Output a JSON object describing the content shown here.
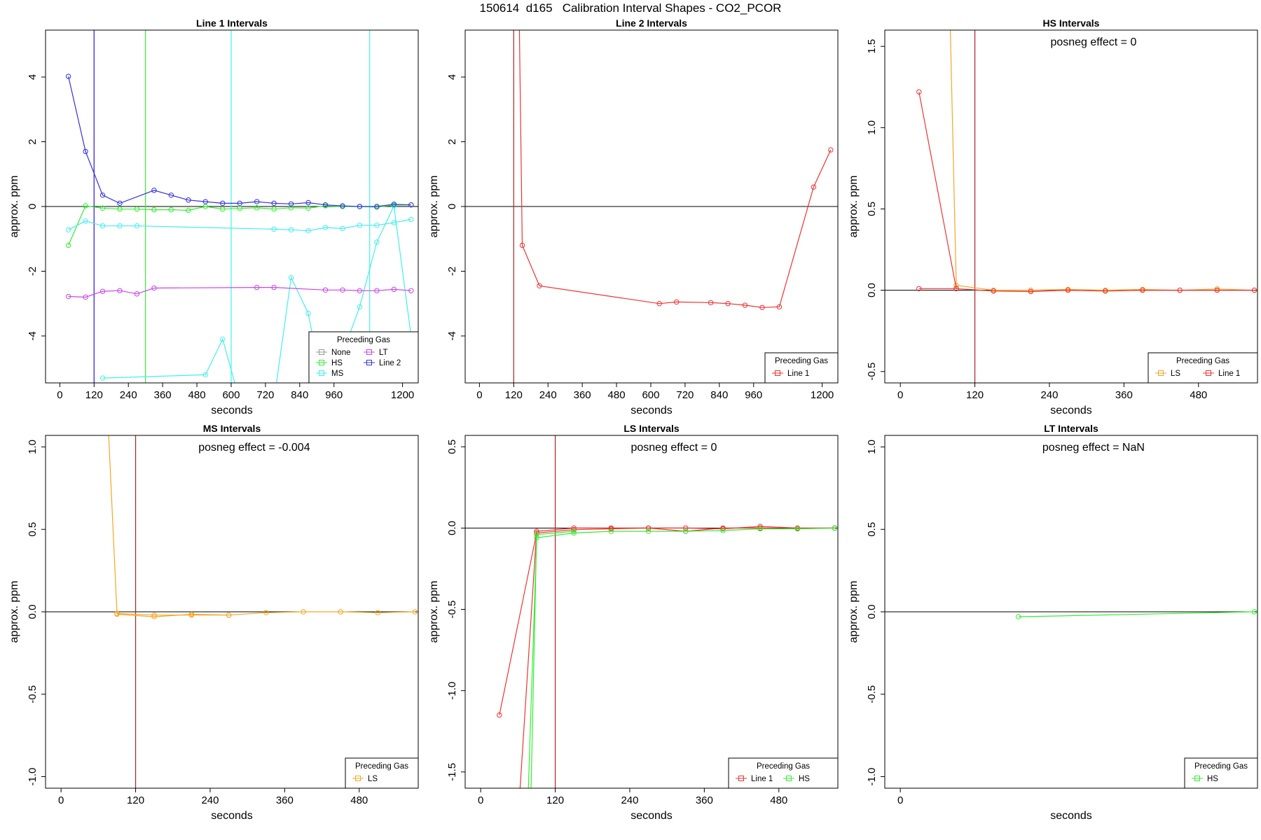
{
  "main_title": "150614  d165   Calibration Interval Shapes - CO2_PCOR",
  "legend_title": "Preceding Gas",
  "colors": {
    "None": "#999999",
    "HS": "#33ee33",
    "MS": "#44eeee",
    "LT": "#cc44ee",
    "Line 2": "#3333dd",
    "Line 1": "#ee3333",
    "LS": "#f5a623",
    "ref_red": "#aa2222"
  },
  "chart_data": [
    {
      "type": "line",
      "title": "Line 1 Intervals",
      "xlabel": "seconds",
      "ylabel": "approx. ppm",
      "xlim": [
        -50,
        1255
      ],
      "ylim": [
        -5.45,
        5.45
      ],
      "xticks": [
        0,
        120,
        240,
        360,
        480,
        600,
        720,
        840,
        960,
        1200
      ],
      "yticks": [
        -4,
        -2,
        0,
        2,
        4
      ],
      "vlines": [
        {
          "x": 120,
          "color": "#cc44ee"
        },
        {
          "x": 120,
          "color": "#3333dd"
        },
        {
          "x": 300,
          "color": "#33ee33"
        },
        {
          "x": 600,
          "color": "#44eeee"
        },
        {
          "x": 1085,
          "color": "#44eeee"
        }
      ],
      "posneg": "",
      "legend": {
        "entries": [
          "None",
          "HS",
          "MS",
          "LT",
          "Line 2"
        ],
        "cols": 2
      },
      "series": [
        {
          "name": "HS",
          "color": "#33ee33",
          "x": [
            30,
            90,
            150,
            210,
            270,
            330,
            390,
            450,
            510,
            570,
            630,
            690,
            750,
            810,
            870,
            930,
            990,
            1050,
            1110,
            1170,
            1230
          ],
          "y": [
            -1.2,
            0.02,
            -0.05,
            -0.08,
            -0.08,
            -0.1,
            -0.1,
            -0.12,
            0.0,
            -0.08,
            -0.06,
            -0.04,
            -0.08,
            -0.04,
            -0.05,
            0.02,
            0.0,
            0.0,
            -0.02,
            0.04,
            0.05
          ]
        },
        {
          "name": "MS",
          "color": "#44eeee",
          "x": [
            30,
            90,
            150,
            210,
            270,
            750,
            810,
            870,
            930,
            990,
            1050,
            1110,
            1170,
            1230
          ],
          "y": [
            -0.72,
            -0.45,
            -0.6,
            -0.6,
            -0.6,
            -0.7,
            -0.72,
            -0.75,
            -0.65,
            -0.68,
            -0.58,
            -0.58,
            -0.5,
            -0.4
          ]
        },
        {
          "name": "MS",
          "color": "#44eeee",
          "x": [
            150,
            510,
            570,
            630,
            750,
            810,
            870,
            930,
            1050,
            1110,
            1170,
            1230
          ],
          "y": [
            -5.3,
            -5.2,
            -4.1,
            -6.0,
            -6.0,
            -2.2,
            -3.3,
            -6.0,
            -3.1,
            -1.1,
            0.02,
            -4.0
          ]
        },
        {
          "name": "LT",
          "color": "#cc44ee",
          "x": [
            30,
            90,
            150,
            210,
            270,
            330,
            690,
            750,
            930,
            990,
            1050,
            1110,
            1170,
            1230
          ],
          "y": [
            -2.78,
            -2.8,
            -2.62,
            -2.6,
            -2.7,
            -2.52,
            -2.5,
            -2.5,
            -2.58,
            -2.58,
            -2.6,
            -2.6,
            -2.56,
            -2.6
          ]
        },
        {
          "name": "Line 2",
          "color": "#3333dd",
          "x": [
            30,
            90,
            150,
            210,
            330,
            390,
            450,
            510,
            570,
            630,
            690,
            750,
            810,
            870,
            930,
            990,
            1050,
            1110,
            1170,
            1230
          ],
          "y": [
            4.02,
            1.7,
            0.35,
            0.1,
            0.5,
            0.35,
            0.2,
            0.15,
            0.1,
            0.1,
            0.15,
            0.1,
            0.08,
            0.12,
            0.05,
            0.02,
            0.0,
            0.0,
            0.07,
            0.05
          ]
        }
      ]
    },
    {
      "type": "line",
      "title": "Line 2 Intervals",
      "xlabel": "seconds",
      "ylabel": "approx. ppm",
      "xlim": [
        -50,
        1255
      ],
      "ylim": [
        -5.45,
        5.45
      ],
      "xticks": [
        0,
        120,
        240,
        360,
        480,
        600,
        720,
        840,
        960,
        1200
      ],
      "yticks": [
        -4,
        -2,
        0,
        2,
        4
      ],
      "vlines": [
        {
          "x": 120,
          "color": "#aa2222"
        }
      ],
      "posneg": "",
      "legend": {
        "entries": [
          "Line 1"
        ],
        "cols": 1
      },
      "series": [
        {
          "name": "Line 1",
          "color": "#ee3333",
          "x": [
            130,
            150,
            210,
            630,
            690,
            810,
            870,
            930,
            990,
            1050,
            1170,
            1230
          ],
          "y": [
            12.0,
            -1.2,
            -2.45,
            -3.0,
            -2.95,
            -2.97,
            -3.0,
            -3.05,
            -3.12,
            -3.1,
            0.6,
            1.75
          ]
        }
      ]
    },
    {
      "type": "line",
      "title": "HS Intervals",
      "xlabel": "seconds",
      "ylabel": "approx. ppm",
      "xlim": [
        -25,
        575
      ],
      "ylim": [
        -0.57,
        1.6
      ],
      "xticks": [
        0,
        120,
        240,
        360,
        480
      ],
      "yticks": [
        -0.5,
        0.0,
        0.5,
        1.0,
        1.5
      ],
      "vlines": [
        {
          "x": 120,
          "color": "#aa2222"
        }
      ],
      "posneg": "posneg effect = 0",
      "legend": {
        "entries": [
          "LS",
          "Line 1"
        ],
        "cols": 2
      },
      "series": [
        {
          "name": "LS",
          "color": "#f5a623",
          "x": [
            75,
            90,
            150,
            210,
            270,
            330,
            390,
            450,
            510,
            570
          ],
          "y": [
            2.5,
            0.03,
            0.0,
            0.0,
            0.005,
            0.0,
            0.005,
            0.0,
            0.008,
            0.0
          ]
        },
        {
          "name": "Line 1",
          "color": "#ee3333",
          "x": [
            30,
            90,
            150,
            210,
            270,
            330,
            390,
            450,
            510,
            570
          ],
          "y": [
            1.22,
            0.01,
            -0.005,
            -0.008,
            0.0,
            -0.005,
            0.0,
            0.0,
            0.0,
            0.0
          ]
        },
        {
          "name": "Line 1",
          "color": "#ee3333",
          "x": [
            30,
            90
          ],
          "y": [
            0.01,
            0.01
          ]
        }
      ]
    },
    {
      "type": "line",
      "title": "MS Intervals",
      "xlabel": "seconds",
      "ylabel": "approx. ppm",
      "xlim": [
        -25,
        575
      ],
      "ylim": [
        -1.07,
        1.07
      ],
      "xticks": [
        0,
        120,
        240,
        360,
        480
      ],
      "yticks": [
        -1.0,
        -0.5,
        0.0,
        0.5,
        1.0
      ],
      "vlines": [
        {
          "x": 120,
          "color": "#aa2222"
        }
      ],
      "posneg": "posneg effect = -0.004",
      "legend": {
        "entries": [
          "LS"
        ],
        "cols": 1
      },
      "series": [
        {
          "name": "LS",
          "color": "#f5a623",
          "x": [
            75,
            90,
            150,
            210,
            270,
            330,
            390,
            450,
            510,
            570
          ],
          "y": [
            1.2,
            -0.01,
            -0.02,
            -0.02,
            -0.02,
            -0.005,
            0.0,
            0.0,
            -0.005,
            0.0
          ]
        },
        {
          "name": "LS",
          "color": "#f5a623",
          "x": [
            90,
            150,
            210,
            270
          ],
          "y": [
            -0.015,
            -0.03,
            -0.015,
            -0.02
          ]
        }
      ]
    },
    {
      "type": "line",
      "title": "LS Intervals",
      "xlabel": "seconds",
      "ylabel": "approx. ppm",
      "xlim": [
        -25,
        575
      ],
      "ylim": [
        -1.6,
        0.57
      ],
      "xticks": [
        0,
        120,
        240,
        360,
        480
      ],
      "yticks": [
        -1.5,
        -1.0,
        -0.5,
        0.0,
        0.5
      ],
      "vlines": [
        {
          "x": 120,
          "color": "#aa2222"
        }
      ],
      "posneg": "posneg effect = 0",
      "legend": {
        "entries": [
          "Line 1",
          "HS"
        ],
        "cols": 2
      },
      "series": [
        {
          "name": "Line 1",
          "color": "#ee3333",
          "x": [
            30,
            90,
            150,
            210,
            270,
            330,
            390,
            450,
            510,
            570
          ],
          "y": [
            -1.15,
            -0.03,
            -0.01,
            -0.005,
            0.0,
            0.0,
            -0.005,
            0.01,
            0.0,
            0.0
          ]
        },
        {
          "name": "Line 1",
          "color": "#ee3333",
          "x": [
            60,
            90,
            150,
            210,
            270,
            330,
            390,
            450,
            510,
            570
          ],
          "y": [
            -1.8,
            -0.02,
            0.0,
            0.0,
            0.0,
            -0.02,
            0.0,
            0.0,
            -0.005,
            0.0
          ]
        },
        {
          "name": "HS",
          "color": "#33ee33",
          "x": [
            75,
            90,
            150,
            210,
            270,
            330,
            390,
            450,
            510,
            570
          ],
          "y": [
            -1.8,
            -0.06,
            -0.03,
            -0.02,
            -0.02,
            -0.02,
            -0.015,
            -0.005,
            -0.005,
            0.0
          ]
        },
        {
          "name": "HS",
          "color": "#33ee33",
          "x": [
            80,
            90,
            150
          ],
          "y": [
            -1.8,
            -0.04,
            -0.02
          ]
        }
      ]
    },
    {
      "type": "line",
      "title": "LT Intervals",
      "xlabel": "seconds",
      "ylabel": "approx. ppm",
      "xlim": [
        -25,
        575
      ],
      "ylim": [
        -1.07,
        1.07
      ],
      "xticks": [
        0
      ],
      "yticks": [
        -1.0,
        -0.5,
        0.0,
        0.5,
        1.0
      ],
      "vlines": [],
      "posneg": "posneg effect = NaN",
      "legend": {
        "entries": [
          "HS"
        ],
        "cols": 1
      },
      "series": [
        {
          "name": "HS",
          "color": "#33ee33",
          "x": [
            190,
            570
          ],
          "y": [
            -0.03,
            0.0
          ]
        }
      ]
    }
  ]
}
